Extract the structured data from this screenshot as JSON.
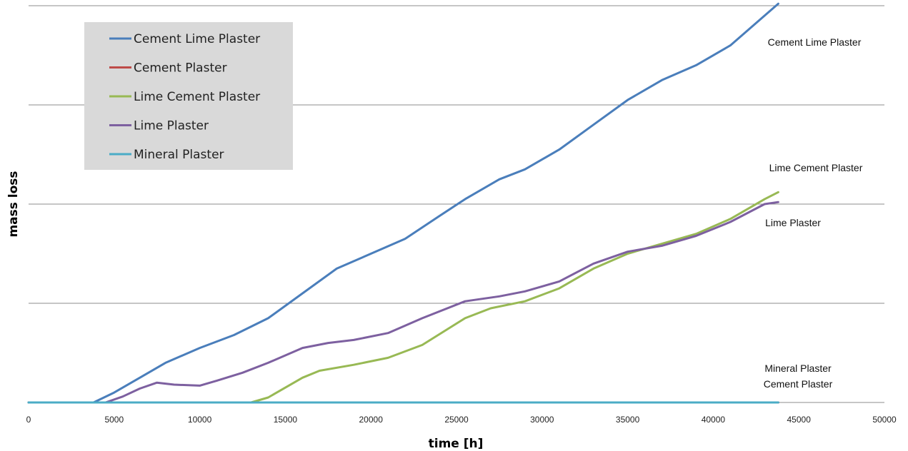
{
  "chart_data": {
    "type": "line",
    "title": "",
    "xlabel": "time [h]",
    "ylabel": "mass loss",
    "xlim": [
      0,
      50000
    ],
    "ylim": [
      0,
      4
    ],
    "x_ticks": [
      0,
      5000,
      10000,
      15000,
      20000,
      25000,
      30000,
      35000,
      40000,
      45000,
      50000
    ],
    "y_gridlines": [
      1,
      2,
      3,
      4
    ],
    "grid": "horizontal",
    "legend_position": "top-left",
    "series": [
      {
        "name": "Cement Lime Plaster",
        "color": "#4a7ebb",
        "points": [
          [
            0,
            0
          ],
          [
            3800,
            0
          ],
          [
            5000,
            0.1
          ],
          [
            6500,
            0.25
          ],
          [
            8000,
            0.4
          ],
          [
            10000,
            0.55
          ],
          [
            12000,
            0.68
          ],
          [
            14000,
            0.85
          ],
          [
            16000,
            1.1
          ],
          [
            18000,
            1.35
          ],
          [
            20000,
            1.5
          ],
          [
            22000,
            1.65
          ],
          [
            24000,
            1.88
          ],
          [
            25500,
            2.05
          ],
          [
            27500,
            2.25
          ],
          [
            29000,
            2.35
          ],
          [
            31000,
            2.55
          ],
          [
            33000,
            2.8
          ],
          [
            35000,
            3.05
          ],
          [
            37000,
            3.25
          ],
          [
            39000,
            3.4
          ],
          [
            41000,
            3.6
          ],
          [
            43000,
            3.9
          ],
          [
            43800,
            4.02
          ]
        ]
      },
      {
        "name": "Cement Plaster",
        "color": "#be4b48",
        "points": [
          [
            0,
            0
          ],
          [
            43800,
            0
          ]
        ]
      },
      {
        "name": "Lime Cement Plaster",
        "color": "#98b954",
        "points": [
          [
            0,
            0
          ],
          [
            13000,
            0
          ],
          [
            14000,
            0.05
          ],
          [
            16000,
            0.25
          ],
          [
            17000,
            0.32
          ],
          [
            19000,
            0.38
          ],
          [
            21000,
            0.45
          ],
          [
            23000,
            0.58
          ],
          [
            25500,
            0.85
          ],
          [
            27000,
            0.95
          ],
          [
            29000,
            1.02
          ],
          [
            31000,
            1.15
          ],
          [
            33000,
            1.35
          ],
          [
            35000,
            1.5
          ],
          [
            37000,
            1.6
          ],
          [
            39000,
            1.7
          ],
          [
            41000,
            1.85
          ],
          [
            43000,
            2.05
          ],
          [
            43800,
            2.12
          ]
        ]
      },
      {
        "name": "Lime Plaster",
        "color": "#7d60a0",
        "points": [
          [
            0,
            0
          ],
          [
            4500,
            0
          ],
          [
            5500,
            0.06
          ],
          [
            6500,
            0.14
          ],
          [
            7500,
            0.2
          ],
          [
            8500,
            0.18
          ],
          [
            10000,
            0.17
          ],
          [
            11000,
            0.22
          ],
          [
            12500,
            0.3
          ],
          [
            14000,
            0.4
          ],
          [
            16000,
            0.55
          ],
          [
            17500,
            0.6
          ],
          [
            19000,
            0.63
          ],
          [
            21000,
            0.7
          ],
          [
            23000,
            0.85
          ],
          [
            25500,
            1.02
          ],
          [
            27500,
            1.07
          ],
          [
            29000,
            1.12
          ],
          [
            31000,
            1.22
          ],
          [
            33000,
            1.4
          ],
          [
            35000,
            1.52
          ],
          [
            37000,
            1.58
          ],
          [
            39000,
            1.68
          ],
          [
            41000,
            1.82
          ],
          [
            43000,
            2.0
          ],
          [
            43800,
            2.02
          ]
        ]
      },
      {
        "name": "Mineral Plaster",
        "color": "#4bacc6",
        "points": [
          [
            0,
            0
          ],
          [
            43800,
            0
          ]
        ]
      }
    ],
    "annotations": [
      "Cement Lime Plaster",
      "Lime Cement Plaster",
      "Lime Plaster",
      "Mineral Plaster",
      "Cement Plaster"
    ]
  }
}
